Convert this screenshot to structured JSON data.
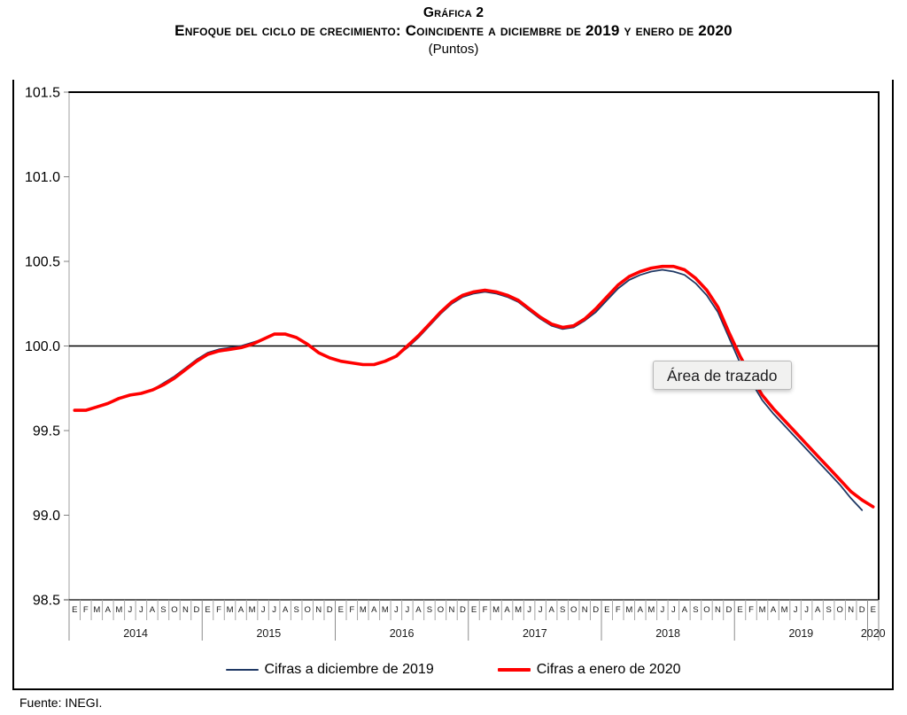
{
  "title": {
    "line1": "Gráfica 2",
    "line2": "Enfoque del ciclo de crecimiento: Coincidente a diciembre de 2019 y enero de 2020",
    "line3": "(Puntos)"
  },
  "tooltip": {
    "text": "Área de trazado"
  },
  "footer": {
    "text": "Fuente: INEGI."
  },
  "legend": [
    {
      "label": "Cifras a diciembre de 2019",
      "color": "#1F3864",
      "thickness": 2
    },
    {
      "label": "Cifras a enero de 2020",
      "color": "#FF0000",
      "thickness": 4
    }
  ],
  "chart_data": {
    "type": "line",
    "title": "Gráfica 2 — Enfoque del ciclo de crecimiento: Coincidente a diciembre de 2019 y enero de 2020",
    "ylabel": "Puntos",
    "ylim": [
      98.5,
      101.5
    ],
    "yticks": [
      101.5,
      101.0,
      100.5,
      100.0,
      99.5,
      99.0,
      98.5
    ],
    "reference_line": 100.0,
    "grid": "off",
    "legend_position": "bottom",
    "month_letters": [
      "E",
      "F",
      "M",
      "A",
      "M",
      "J",
      "J",
      "A",
      "S",
      "O",
      "N",
      "D"
    ],
    "years": [
      {
        "label": "2014",
        "months": 12
      },
      {
        "label": "2015",
        "months": 12
      },
      {
        "label": "2016",
        "months": 12
      },
      {
        "label": "2017",
        "months": 12
      },
      {
        "label": "2018",
        "months": 12
      },
      {
        "label": "2019",
        "months": 12
      },
      {
        "label": "2020",
        "months": 1
      }
    ],
    "x_range": "Enero 2014 – Enero 2020 (mensual)",
    "series": [
      {
        "name": "Cifras a diciembre de 2019",
        "color": "#1F3864",
        "width": 1.8,
        "values": [
          99.62,
          99.62,
          99.64,
          99.66,
          99.69,
          99.71,
          99.72,
          99.74,
          99.78,
          99.82,
          99.87,
          99.92,
          99.96,
          99.98,
          99.99,
          100.0,
          100.02,
          100.04,
          100.07,
          100.07,
          100.05,
          100.01,
          99.96,
          99.93,
          99.91,
          99.9,
          99.89,
          99.89,
          99.91,
          99.94,
          99.99,
          100.05,
          100.12,
          100.19,
          100.25,
          100.29,
          100.31,
          100.32,
          100.31,
          100.29,
          100.26,
          100.21,
          100.16,
          100.12,
          100.1,
          100.11,
          100.15,
          100.2,
          100.27,
          100.34,
          100.39,
          100.42,
          100.44,
          100.45,
          100.44,
          100.42,
          100.37,
          100.3,
          100.2,
          100.05,
          99.9,
          99.79,
          99.68,
          99.6,
          99.53,
          99.46,
          99.39,
          99.32,
          99.25,
          99.18,
          99.1,
          99.03
        ]
      },
      {
        "name": "Cifras a enero de 2020",
        "color": "#FF0000",
        "width": 3.6,
        "values": [
          99.62,
          99.62,
          99.64,
          99.66,
          99.69,
          99.71,
          99.72,
          99.74,
          99.77,
          99.81,
          99.86,
          99.91,
          99.95,
          99.97,
          99.98,
          99.99,
          100.01,
          100.04,
          100.07,
          100.07,
          100.05,
          100.01,
          99.96,
          99.93,
          99.91,
          99.9,
          99.89,
          99.89,
          99.91,
          99.94,
          100.0,
          100.06,
          100.13,
          100.2,
          100.26,
          100.3,
          100.32,
          100.33,
          100.32,
          100.3,
          100.27,
          100.22,
          100.17,
          100.13,
          100.11,
          100.12,
          100.16,
          100.22,
          100.29,
          100.36,
          100.41,
          100.44,
          100.46,
          100.47,
          100.47,
          100.45,
          100.4,
          100.33,
          100.23,
          100.08,
          99.94,
          99.82,
          99.71,
          99.63,
          99.56,
          99.49,
          99.42,
          99.35,
          99.28,
          99.21,
          99.14,
          99.09,
          99.05
        ]
      }
    ]
  }
}
